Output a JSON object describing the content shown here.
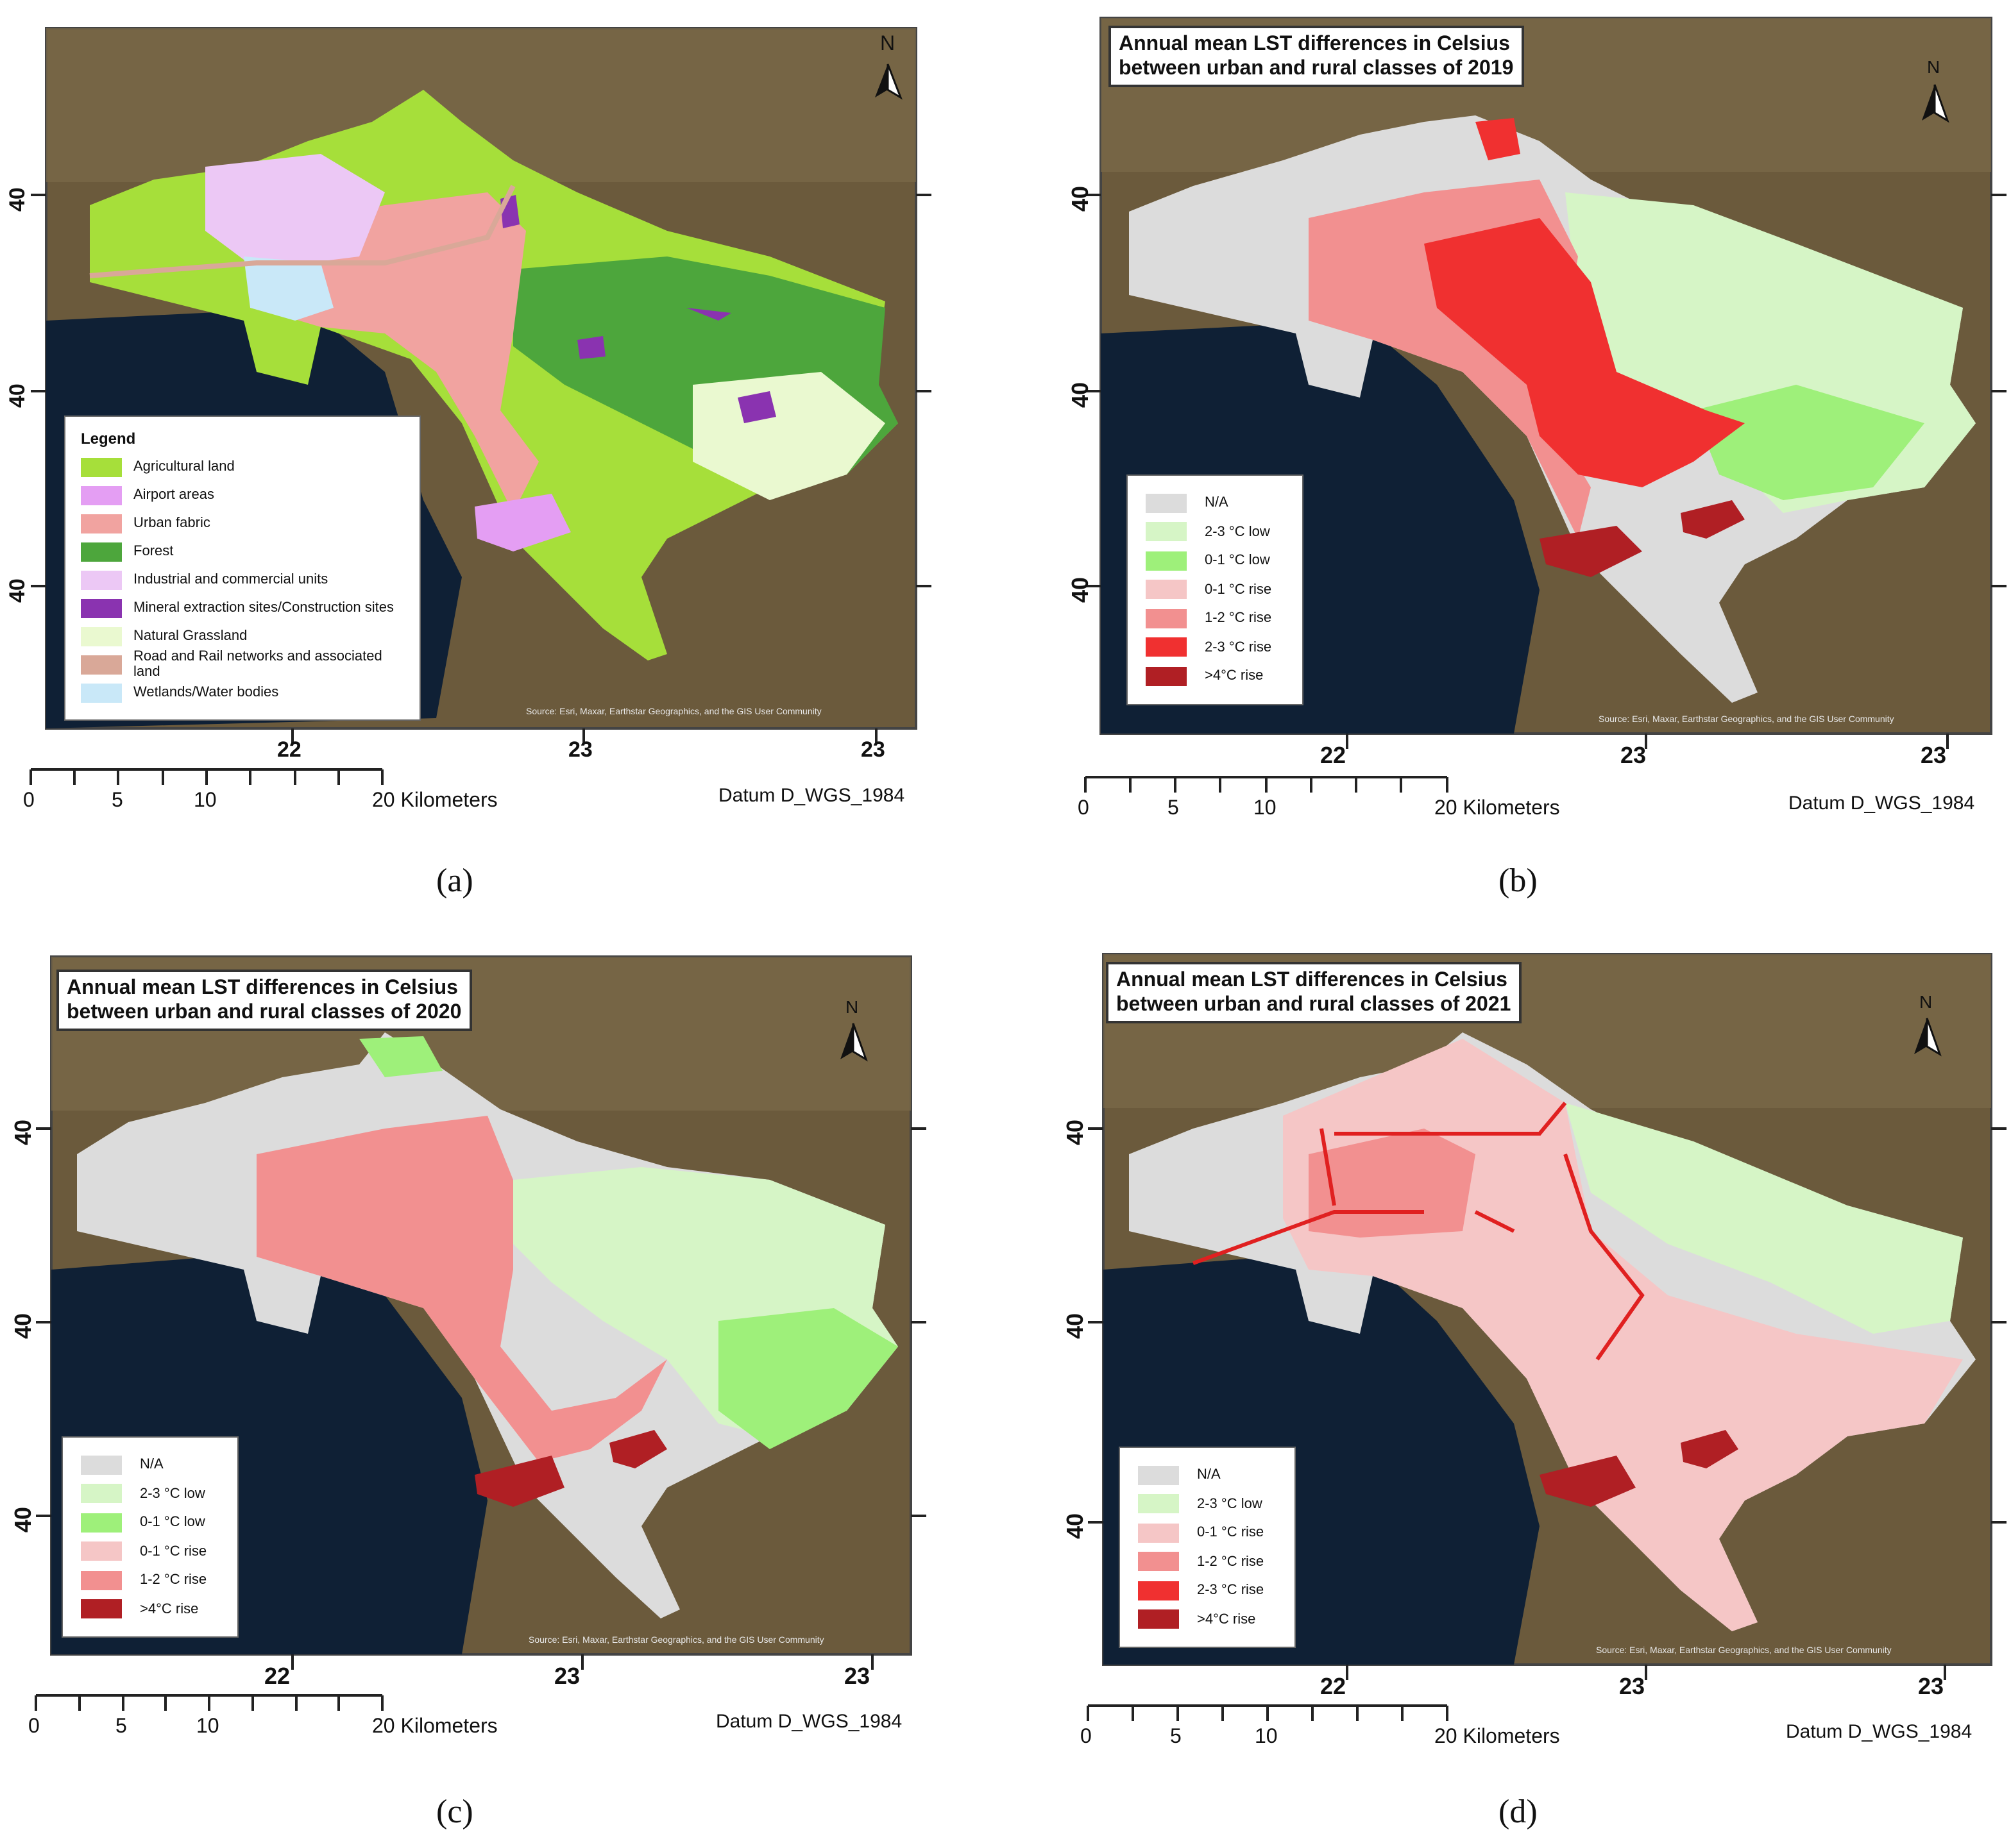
{
  "colors": {
    "sea": "#0f2035",
    "land": "#6b5a3c",
    "agricultural": "#a6df3a",
    "airport": "#e49ef3",
    "urban_fabric": "#f1a3a0",
    "forest": "#4da63c",
    "industrial": "#ecc8f5",
    "mineral": "#8a33b0",
    "grassland": "#eaf9d0",
    "road_rail": "#d9a898",
    "wetlands": "#c9e8f8",
    "na": "#dcdcdc",
    "low_2_3": "#d6f5c6",
    "low_0_1": "#9ef07a",
    "rise_0_1": "#f5c6c6",
    "rise_1_2": "#f29090",
    "rise_2_3": "#f03030",
    "rise_gt4": "#b01f24"
  },
  "panels": [
    {
      "id": "a",
      "caption": "(a)",
      "title_lines": [],
      "legend_title": "Legend",
      "legend": [
        {
          "label": "Agricultural land",
          "color": "#a6df3a"
        },
        {
          "label": "Airport areas",
          "color": "#e49ef3"
        },
        {
          "label": "Urban fabric",
          "color": "#f1a3a0"
        },
        {
          "label": "Forest",
          "color": "#4da63c"
        },
        {
          "label": "Industrial and commercial units",
          "color": "#ecc8f5"
        },
        {
          "label": "Mineral extraction sites/Construction sites",
          "color": "#8a33b0"
        },
        {
          "label": "Natural Grassland",
          "color": "#eaf9d0"
        },
        {
          "label": "Road and Rail networks and associated land",
          "color": "#d9a898"
        },
        {
          "label": "Wetlands/Water bodies",
          "color": "#c9e8f8"
        }
      ],
      "x_ticks": [
        "22",
        "23",
        "23"
      ],
      "y_ticks": [
        "40",
        "40",
        "40"
      ],
      "north": "N",
      "source": "Source: Esri, Maxar, Earthstar Geographics, and the GIS User Community",
      "scale_labels": [
        "0",
        "5",
        "10",
        "20 Kilometers"
      ],
      "datum": "Datum D_WGS_1984"
    },
    {
      "id": "b",
      "caption": "(b)",
      "title_lines": [
        "Annual mean LST differences in Celsius",
        "between urban and rural classes of 2019"
      ],
      "legend_title": "",
      "legend": [
        {
          "label": "N/A",
          "color": "#dcdcdc"
        },
        {
          "label": "2-3 °C  low",
          "color": "#d6f5c6"
        },
        {
          "label": "0-1 °C  low",
          "color": "#9ef07a"
        },
        {
          "label": "0-1 °C  rise",
          "color": "#f5c6c6"
        },
        {
          "label": "1-2 °C  rise",
          "color": "#f29090"
        },
        {
          "label": "2-3 °C  rise",
          "color": "#f03030"
        },
        {
          "label": ">4°C  rise",
          "color": "#b01f24"
        }
      ],
      "x_ticks": [
        "22",
        "23",
        "23"
      ],
      "y_ticks": [
        "40",
        "40",
        "40"
      ],
      "north": "N",
      "source": "Source: Esri, Maxar, Earthstar Geographics, and the GIS User Community",
      "scale_labels": [
        "0",
        "5",
        "10",
        "20 Kilometers"
      ],
      "datum": "Datum D_WGS_1984"
    },
    {
      "id": "c",
      "caption": "(c)",
      "title_lines": [
        "Annual mean LST differences in Celsius",
        "between urban and rural classes of 2020"
      ],
      "legend_title": "",
      "legend": [
        {
          "label": "N/A",
          "color": "#dcdcdc"
        },
        {
          "label": "2-3 °C  low",
          "color": "#d6f5c6"
        },
        {
          "label": "0-1 °C  low",
          "color": "#9ef07a"
        },
        {
          "label": "0-1 °C  rise",
          "color": "#f5c6c6"
        },
        {
          "label": "1-2 °C  rise",
          "color": "#f29090"
        },
        {
          "label": ">4°C  rise",
          "color": "#b01f24"
        }
      ],
      "x_ticks": [
        "22",
        "23",
        "23"
      ],
      "y_ticks": [
        "40",
        "40",
        "40"
      ],
      "north": "N",
      "source": "Source: Esri, Maxar, Earthstar Geographics, and the GIS User Community",
      "scale_labels": [
        "0",
        "5",
        "10",
        "20 Kilometers"
      ],
      "datum": "Datum D_WGS_1984"
    },
    {
      "id": "d",
      "caption": "(d)",
      "title_lines": [
        "Annual mean LST differences in Celsius",
        "between urban and rural classes of 2021"
      ],
      "legend_title": "",
      "legend": [
        {
          "label": "N/A",
          "color": "#dcdcdc"
        },
        {
          "label": "2-3 °C  low",
          "color": "#d6f5c6"
        },
        {
          "label": "0-1 °C  rise",
          "color": "#f5c6c6"
        },
        {
          "label": "1-2 °C  rise",
          "color": "#f29090"
        },
        {
          "label": "2-3 °C  rise",
          "color": "#f03030"
        },
        {
          "label": ">4°C  rise",
          "color": "#b01f24"
        }
      ],
      "x_ticks": [
        "22",
        "23",
        "23"
      ],
      "y_ticks": [
        "40",
        "40",
        "40"
      ],
      "north": "N",
      "source": "Source: Esri, Maxar, Earthstar Geographics, and the GIS User Community",
      "scale_labels": [
        "0",
        "5",
        "10",
        "20 Kilometers"
      ],
      "datum": "Datum D_WGS_1984"
    }
  ]
}
